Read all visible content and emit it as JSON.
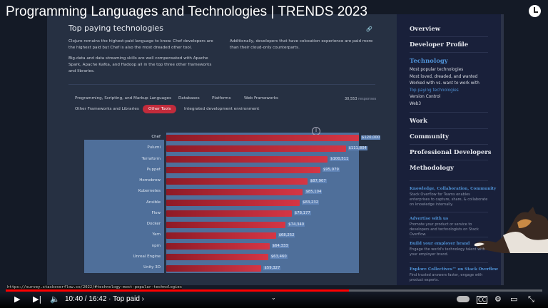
{
  "video": {
    "title": "Programming Languages and Technologies | TRENDS 2023",
    "time": "10:40 / 16:42 · Top paid ›",
    "progress": 0.639,
    "url": "https://survey.stackoverflow.co/2022/#technology-most-popular-technologies"
  },
  "section": {
    "title": "Top paying technologies",
    "p1": "Clojure remains the highest-paid language to know. Chef developers are the highest paid but Chef is also the most dreaded other tool.",
    "p2": "Big-data and data streaming skills are well compensated with Apache Spark, Apache Kafka, and Hadoop all in the top three other frameworks and libraries.",
    "p3": "Additionally, developers that have colocation experience are paid more than their cloud-only counterparts.",
    "tabs": [
      "Programming, Scripting, and Markup Languages",
      "Databases",
      "Platforms",
      "Web Frameworks",
      "Other Frameworks and Libraries",
      "Other Tools",
      "Integrated development environment"
    ],
    "active_tab": "Other Tools",
    "responses": "30,553",
    "responses_label": "responses"
  },
  "chart_data": {
    "type": "bar",
    "orientation": "horizontal",
    "bar_color": "#c22b3b",
    "categories": [
      "Chef",
      "Pulumi",
      "Terraform",
      "Puppet",
      "Homebrew",
      "Kubernetes",
      "Ansible",
      "Flow",
      "Docker",
      "Yarn",
      "npm",
      "Unreal Engine",
      "Unity 3D"
    ],
    "values": [
      120000,
      111804,
      100511,
      95979,
      87907,
      85104,
      83232,
      78177,
      74340,
      68252,
      64333,
      63460,
      59327
    ],
    "labels": [
      "$120,000",
      "$111,804",
      "$100,511",
      "$95,979",
      "$87,907",
      "$85,104",
      "$83,232",
      "$78,177",
      "$74,340",
      "$68,252",
      "$64,333",
      "$63,460",
      "$59,327"
    ]
  },
  "sidebar": {
    "nav": [
      "Overview",
      "Developer Profile",
      "Technology",
      "Work",
      "Community",
      "Professional Developers",
      "Methodology"
    ],
    "tech_sub": [
      "Most popular technologies",
      "Most loved, dreaded, and wanted",
      "Worked with vs. want to work with",
      "Top paying technologies",
      "Version Control",
      "Web3"
    ],
    "ads": [
      {
        "h": "Knowledge, Collaboration, Community",
        "p": "Stack Overflow for Teams enables enterprises to capture, share, & collaborate on knowledge internally."
      },
      {
        "h": "Advertise with us",
        "p": "Promote your product or service to developers and technologists on Stack Overflow."
      },
      {
        "h": "Build your employer brand",
        "p": "Engage the world's technology talent with your employer brand."
      },
      {
        "h": "Explore Collectives™ on Stack Overflow",
        "p": "Find trusted answers faster, engage with product experts."
      }
    ]
  },
  "colors": {
    "accent": "#c22b3b",
    "link": "#4f92d6"
  }
}
